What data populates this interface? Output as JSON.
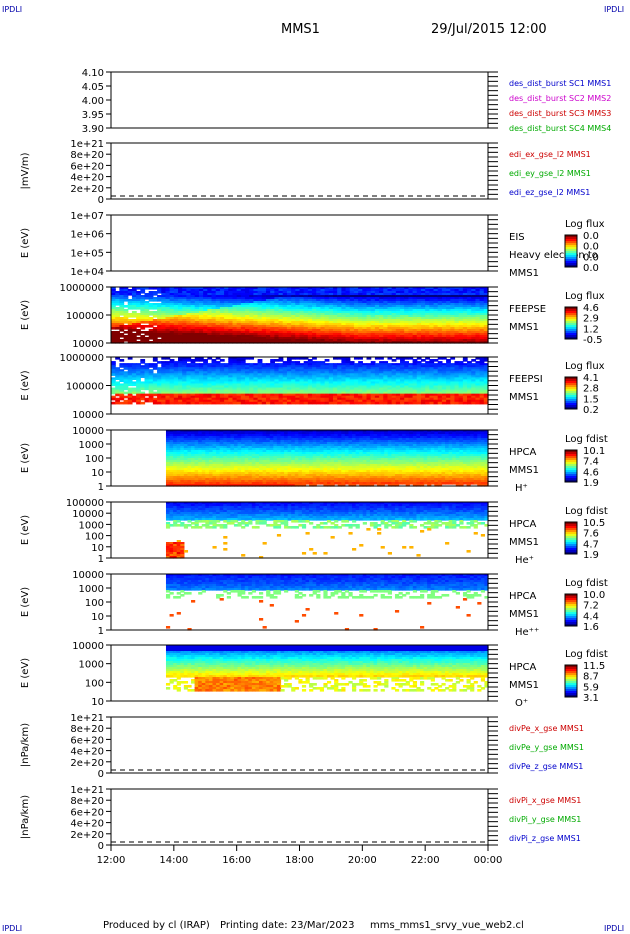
{
  "corner_labels": [
    "IPDLI",
    "IPDLI",
    "IPDLI",
    "IPDLI"
  ],
  "header": {
    "mission": "MMS1",
    "datetime": "29/Jul/2015 12:00"
  },
  "footer": {
    "producer": "Produced by cl (IRAP)",
    "print_date": "Printing date: 23/Mar/2023",
    "filename": "mms_mms1_srvy_vue_web2.cl"
  },
  "chart_data": [
    {
      "type": "line",
      "panel": "des_dist_burst",
      "yticks": [
        "4.10",
        "4.05",
        "4.00",
        "3.95",
        "3.90"
      ],
      "ylim": [
        3.9,
        4.1
      ],
      "ylabel": "",
      "legend": [
        {
          "label": "des_dist_burst SC1 MMS1",
          "color": "#0000cc"
        },
        {
          "label": "des_dist_burst SC2 MMS2",
          "color": "#cc00cc"
        },
        {
          "label": "des_dist_burst SC3 MMS3",
          "color": "#cc0000"
        },
        {
          "label": "des_dist_burst SC4 MMS4",
          "color": "#00aa00"
        }
      ],
      "series": []
    },
    {
      "type": "line",
      "panel": "edi_e_gse",
      "yticks": [
        "1e+21",
        "8e+20",
        "6e+20",
        "4e+20",
        "2e+20",
        "0"
      ],
      "ylim": [
        0,
        1e+21
      ],
      "ylabel": "|mV/m)",
      "legend": [
        {
          "label": "edi_ex_gse_l2 MMS1",
          "color": "#cc0000"
        },
        {
          "label": "edi_ey_gse_l2 MMS1",
          "color": "#00aa00"
        },
        {
          "label": "edi_ez_gse_l2 MMS1",
          "color": "#0000cc"
        }
      ],
      "zero_line": true,
      "series": []
    },
    {
      "type": "heatmap",
      "panel": "EIS",
      "yticks": [
        "1e+07",
        "1e+06",
        "1e+05",
        "1e+04"
      ],
      "ylabel": "E (eV)",
      "side_labels": [
        "EIS",
        "Heavy electron to",
        "MMS1"
      ],
      "colorbar_title": "Log flux",
      "colorbar_ticks": [
        "0.0",
        "0.0",
        "0.0",
        "0.0"
      ],
      "data_window": null
    },
    {
      "type": "heatmap",
      "panel": "FEEPSE",
      "yticks": [
        "1000000",
        "100000",
        "10000"
      ],
      "ylabel": "E (eV)",
      "side_labels": [
        "FEEPSE",
        "MMS1"
      ],
      "colorbar_title": "Log flux",
      "colorbar_ticks": [
        "4.6",
        "2.9",
        "1.2",
        "-0.5"
      ],
      "data_window": [
        "12:00",
        "00:00"
      ]
    },
    {
      "type": "heatmap",
      "panel": "FEEPSI",
      "yticks": [
        "1000000",
        "100000",
        "10000"
      ],
      "ylabel": "E (eV)",
      "side_labels": [
        "FEEPSI",
        "MMS1"
      ],
      "colorbar_title": "Log flux",
      "colorbar_ticks": [
        "4.1",
        "2.8",
        "1.5",
        "0.2"
      ],
      "data_window": [
        "12:00",
        "00:00"
      ]
    },
    {
      "type": "heatmap",
      "panel": "HPCA_H",
      "yticks": [
        "10000",
        "1000",
        "100",
        "10",
        "1"
      ],
      "ylabel": "E (eV)",
      "side_labels": [
        "HPCA",
        "MMS1",
        "H⁺"
      ],
      "colorbar_title": "Log fdist",
      "colorbar_ticks": [
        "10.1",
        "7.4",
        "4.6",
        "1.9"
      ],
      "data_window": [
        "13:45",
        "00:00"
      ]
    },
    {
      "type": "heatmap",
      "panel": "HPCA_He",
      "yticks": [
        "100000",
        "10000",
        "1000",
        "100",
        "10",
        "1"
      ],
      "ylabel": "E (eV)",
      "side_labels": [
        "HPCA",
        "MMS1",
        "He⁺"
      ],
      "colorbar_title": "Log fdist",
      "colorbar_ticks": [
        "10.5",
        "7.6",
        "4.7",
        "1.9"
      ],
      "data_window": [
        "13:45",
        "00:00"
      ]
    },
    {
      "type": "heatmap",
      "panel": "HPCA_Hepp",
      "yticks": [
        "10000",
        "1000",
        "100",
        "10",
        "1"
      ],
      "ylabel": "E (eV)",
      "side_labels": [
        "HPCA",
        "MMS1",
        "He⁺⁺"
      ],
      "colorbar_title": "Log fdist",
      "colorbar_ticks": [
        "10.0",
        "7.2",
        "4.4",
        "1.6"
      ],
      "data_window": [
        "13:45",
        "00:00"
      ]
    },
    {
      "type": "heatmap",
      "panel": "HPCA_O",
      "yticks": [
        "10000",
        "1000",
        "100",
        "10"
      ],
      "ylabel": "E (eV)",
      "side_labels": [
        "HPCA",
        "MMS1",
        "O⁺"
      ],
      "colorbar_title": "Log fdist",
      "colorbar_ticks": [
        "11.5",
        "8.7",
        "5.9",
        "3.1"
      ],
      "data_window": [
        "13:45",
        "00:00"
      ]
    },
    {
      "type": "line",
      "panel": "divPe",
      "yticks": [
        "1e+21",
        "8e+20",
        "6e+20",
        "4e+20",
        "2e+20",
        "0"
      ],
      "ylim": [
        0,
        1e+21
      ],
      "ylabel": "|nPa/km)",
      "legend": [
        {
          "label": "divPe_x_gse MMS1",
          "color": "#cc0000"
        },
        {
          "label": "divPe_y_gse MMS1",
          "color": "#00aa00"
        },
        {
          "label": "divPe_z_gse MMS1",
          "color": "#0000cc"
        }
      ],
      "zero_line": true,
      "series": []
    },
    {
      "type": "line",
      "panel": "divPi",
      "yticks": [
        "1e+21",
        "8e+20",
        "6e+20",
        "4e+20",
        "2e+20",
        "0"
      ],
      "ylim": [
        0,
        1e+21
      ],
      "ylabel": "|nPa/km)",
      "legend": [
        {
          "label": "divPi_x_gse MMS1",
          "color": "#cc0000"
        },
        {
          "label": "divPi_y_gse MMS1",
          "color": "#00aa00"
        },
        {
          "label": "divPi_z_gse MMS1",
          "color": "#0000cc"
        }
      ],
      "zero_line": true,
      "series": []
    }
  ],
  "xaxis": {
    "ticks": [
      "12:00",
      "14:00",
      "16:00",
      "18:00",
      "20:00",
      "22:00",
      "00:00"
    ],
    "start_hour": 12,
    "end_hour": 24
  }
}
